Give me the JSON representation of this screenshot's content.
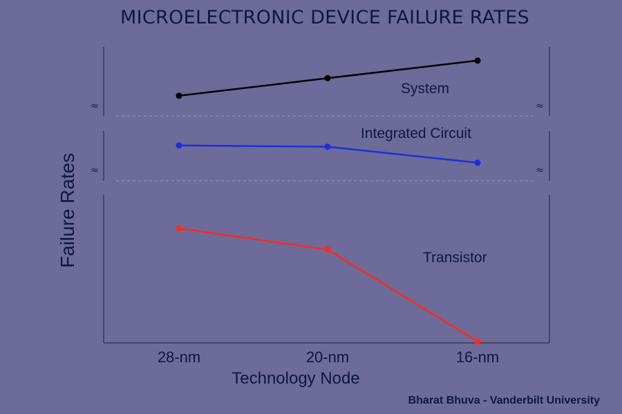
{
  "chart_data": {
    "type": "line",
    "title": "MICROELECTRONIC DEVICE FAILURE RATES",
    "xlabel": "Technology Node",
    "ylabel": "Failure Rates",
    "categories": [
      "28-nm",
      "20-nm",
      "16-nm"
    ],
    "axis_breaks": 2,
    "credit": "Bharat Bhuva - Vanderbilt University",
    "panels": [
      {
        "range": [
          0,
          1
        ],
        "series": [
          {
            "name": "System",
            "color": "#000000",
            "values": [
              0.25,
              0.55,
              0.85
            ]
          }
        ]
      },
      {
        "range": [
          0,
          1
        ],
        "series": [
          {
            "name": "Integrated Circuit",
            "color": "#1a2ee0",
            "values": [
              0.75,
              0.72,
              0.35
            ]
          }
        ]
      },
      {
        "range": [
          0,
          1
        ],
        "series": [
          {
            "name": "Transistor",
            "color": "#ff2a1f",
            "values": [
              0.8,
              0.65,
              0.0
            ]
          }
        ]
      }
    ],
    "grid": false,
    "legend": "inline labels"
  }
}
